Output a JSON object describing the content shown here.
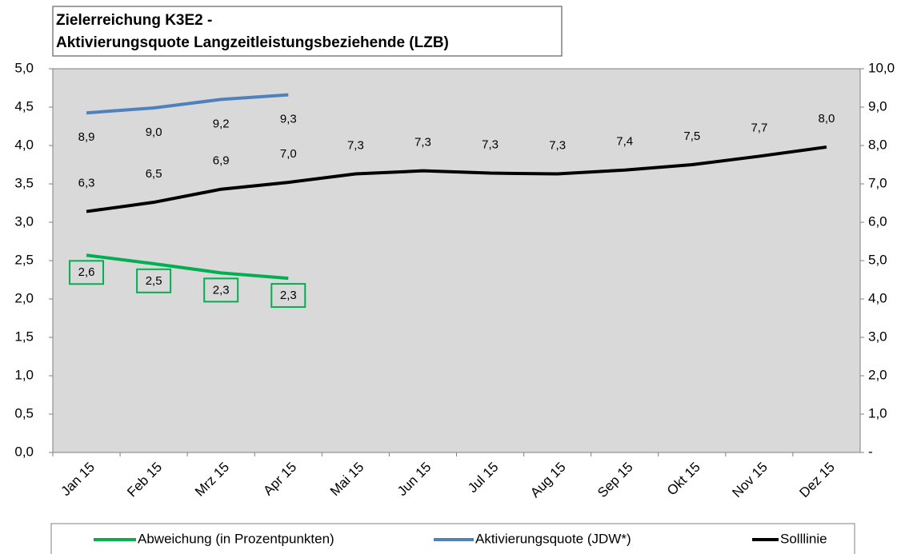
{
  "chart_data": {
    "type": "line",
    "title": [
      "Zielerreichung K3E2 -",
      "Aktivierungsquote Langzeitleistungsbeziehende (LZB)"
    ],
    "categories": [
      "Jan 15",
      "Feb 15",
      "Mrz 15",
      "Apr 15",
      "Mai 15",
      "Jun 15",
      "Jul 15",
      "Aug 15",
      "Sep 15",
      "Okt 15",
      "Nov 15",
      "Dez 15"
    ],
    "series": [
      {
        "name": "Abweichung (in Prozentpunkten)",
        "color": "#00b050",
        "axis": "y",
        "values": [
          2.57,
          2.46,
          2.34,
          2.27,
          null,
          null,
          null,
          null,
          null,
          null,
          null,
          null
        ],
        "value_labels": [
          "2,6",
          "2,5",
          "2,3",
          "2,3",
          null,
          null,
          null,
          null,
          null,
          null,
          null,
          null
        ]
      },
      {
        "name": "Aktivierungsquote (JDW*)",
        "color": "#4f81bd",
        "axis": "y2",
        "values": [
          8.85,
          8.98,
          9.2,
          9.32,
          null,
          null,
          null,
          null,
          null,
          null,
          null,
          null
        ],
        "value_labels": [
          "8,9",
          "9,0",
          "9,2",
          "9,3",
          null,
          null,
          null,
          null,
          null,
          null,
          null,
          null
        ]
      },
      {
        "name": "Solllinie",
        "color": "#000000",
        "axis": "y2",
        "values": [
          6.28,
          6.52,
          6.86,
          7.04,
          7.26,
          7.34,
          7.28,
          7.26,
          7.36,
          7.5,
          7.72,
          7.96
        ],
        "value_labels": [
          "6,3",
          "6,5",
          "6,9",
          "7,0",
          "7,3",
          "7,3",
          "7,3",
          "7,3",
          "7,4",
          "7,5",
          "7,7",
          "8,0"
        ]
      }
    ],
    "ylim": [
      0,
      5
    ],
    "yticks": [
      {
        "value": 0,
        "label": "0,0"
      },
      {
        "value": 0.5,
        "label": "0,5"
      },
      {
        "value": 1,
        "label": "1,0"
      },
      {
        "value": 1.5,
        "label": "1,5"
      },
      {
        "value": 2,
        "label": "2,0"
      },
      {
        "value": 2.5,
        "label": "2,5"
      },
      {
        "value": 3,
        "label": "3,0"
      },
      {
        "value": 3.5,
        "label": "3,5"
      },
      {
        "value": 4,
        "label": "4,0"
      },
      {
        "value": 4.5,
        "label": "4,5"
      },
      {
        "value": 5,
        "label": "5,0"
      }
    ],
    "y2lim": [
      0,
      10
    ],
    "y2ticks": [
      {
        "value": 0,
        "label": "-"
      },
      {
        "value": 1,
        "label": "1,0"
      },
      {
        "value": 2,
        "label": "2,0"
      },
      {
        "value": 3,
        "label": "3,0"
      },
      {
        "value": 4,
        "label": "4,0"
      },
      {
        "value": 5,
        "label": "5,0"
      },
      {
        "value": 6,
        "label": "6,0"
      },
      {
        "value": 7,
        "label": "7,0"
      },
      {
        "value": 8,
        "label": "8,0"
      },
      {
        "value": 9,
        "label": "9,0"
      },
      {
        "value": 10,
        "label": "10,0"
      }
    ],
    "legend": "bottom"
  }
}
